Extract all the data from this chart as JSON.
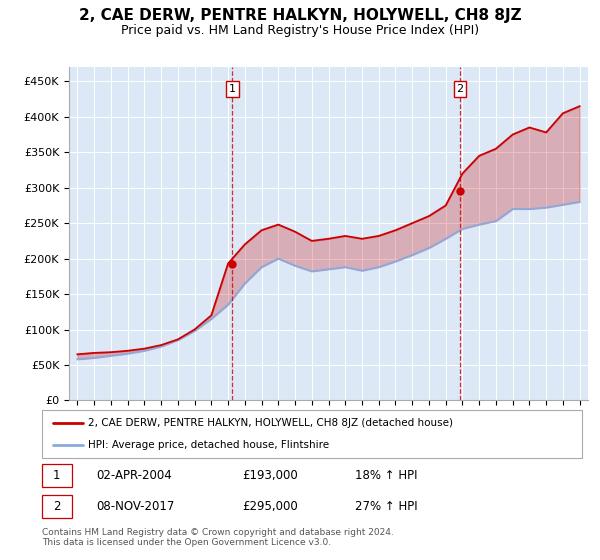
{
  "title": "2, CAE DERW, PENTRE HALKYN, HOLYWELL, CH8 8JZ",
  "subtitle": "Price paid vs. HM Land Registry's House Price Index (HPI)",
  "title_fontsize": 11,
  "subtitle_fontsize": 9,
  "background_color": "#ffffff",
  "plot_bg_color": "#dce8f5",
  "ylabel_ticks": [
    "£0",
    "£50K",
    "£100K",
    "£150K",
    "£200K",
    "£250K",
    "£300K",
    "£350K",
    "£400K",
    "£450K"
  ],
  "ylabel_values": [
    0,
    50000,
    100000,
    150000,
    200000,
    250000,
    300000,
    350000,
    400000,
    450000
  ],
  "ylim": [
    0,
    470000
  ],
  "xlim_start": 1994.5,
  "xlim_end": 2025.5,
  "purchase1_date": 2004.25,
  "purchase1_price": 193000,
  "purchase2_date": 2017.85,
  "purchase2_price": 295000,
  "legend_label_red": "2, CAE DERW, PENTRE HALKYN, HOLYWELL, CH8 8JZ (detached house)",
  "legend_label_blue": "HPI: Average price, detached house, Flintshire",
  "annotation1_date": "02-APR-2004",
  "annotation1_price": "£193,000",
  "annotation1_hpi": "18% ↑ HPI",
  "annotation2_date": "08-NOV-2017",
  "annotation2_price": "£295,000",
  "annotation2_hpi": "27% ↑ HPI",
  "footer": "Contains HM Land Registry data © Crown copyright and database right 2024.\nThis data is licensed under the Open Government Licence v3.0.",
  "red_color": "#cc0000",
  "blue_color": "#88aadd",
  "dashed_color": "#cc0000",
  "years": [
    1995,
    1996,
    1997,
    1998,
    1999,
    2000,
    2001,
    2002,
    2003,
    2004,
    2005,
    2006,
    2007,
    2008,
    2009,
    2010,
    2011,
    2012,
    2013,
    2014,
    2015,
    2016,
    2017,
    2018,
    2019,
    2020,
    2021,
    2022,
    2023,
    2024,
    2025
  ],
  "hpi_values": [
    58000,
    60000,
    63000,
    66000,
    70000,
    76000,
    85000,
    98000,
    115000,
    135000,
    165000,
    188000,
    200000,
    190000,
    182000,
    185000,
    188000,
    183000,
    188000,
    196000,
    205000,
    215000,
    228000,
    242000,
    248000,
    253000,
    270000,
    270000,
    272000,
    276000,
    280000
  ],
  "property_values": [
    65000,
    67000,
    68000,
    70000,
    73000,
    78000,
    86000,
    100000,
    120000,
    193000,
    220000,
    240000,
    248000,
    238000,
    225000,
    228000,
    232000,
    228000,
    232000,
    240000,
    250000,
    260000,
    275000,
    320000,
    345000,
    355000,
    375000,
    385000,
    378000,
    405000,
    415000
  ]
}
